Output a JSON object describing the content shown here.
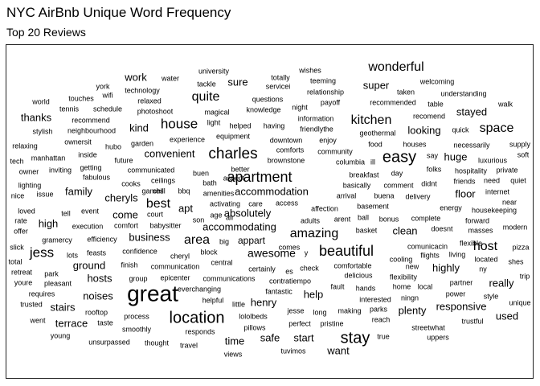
{
  "title": "NYC AirBnb Unique Word Frequency",
  "subtitle": "Top 20 Reviews",
  "chart_data": {
    "type": "wordcloud",
    "words": [
      {
        "text": "great",
        "size": 28
      },
      {
        "text": "easy",
        "size": 20
      },
      {
        "text": "location",
        "size": 20
      },
      {
        "text": "stay",
        "size": 20
      },
      {
        "text": "charles",
        "size": 19
      },
      {
        "text": "apartment",
        "size": 18
      },
      {
        "text": "beautiful",
        "size": 18
      },
      {
        "text": "wonderful",
        "size": 16
      },
      {
        "text": "house",
        "size": 17
      },
      {
        "text": "jess",
        "size": 17
      },
      {
        "text": "kitchen",
        "size": 16
      },
      {
        "text": "space",
        "size": 16
      },
      {
        "text": "host",
        "size": 16
      },
      {
        "text": "amazing",
        "size": 16
      },
      {
        "text": "area",
        "size": 16
      },
      {
        "text": "best",
        "size": 16
      },
      {
        "text": "quite",
        "size": 16
      },
      {
        "text": "awesome",
        "size": 14
      },
      {
        "text": "absolutely",
        "size": 13
      },
      {
        "text": "accommodation",
        "size": 13
      },
      {
        "text": "accommodating",
        "size": 13
      },
      {
        "text": "convenient",
        "size": 13
      },
      {
        "text": "cheryls",
        "size": 13
      },
      {
        "text": "family",
        "size": 13
      },
      {
        "text": "apt",
        "size": 13
      },
      {
        "text": "come",
        "size": 13
      },
      {
        "text": "business",
        "size": 13
      },
      {
        "text": "clean",
        "size": 13
      },
      {
        "text": "floor",
        "size": 13
      },
      {
        "text": "huge",
        "size": 13
      },
      {
        "text": "stayed",
        "size": 13
      },
      {
        "text": "looking",
        "size": 13
      },
      {
        "text": "super",
        "size": 13
      },
      {
        "text": "thanks",
        "size": 13
      },
      {
        "text": "work",
        "size": 13
      },
      {
        "text": "sure",
        "size": 13
      },
      {
        "text": "kind",
        "size": 13
      },
      {
        "text": "high",
        "size": 13
      },
      {
        "text": "ground",
        "size": 13
      },
      {
        "text": "hosts",
        "size": 13
      },
      {
        "text": "noises",
        "size": 13
      },
      {
        "text": "stairs",
        "size": 13
      },
      {
        "text": "terrace",
        "size": 13
      },
      {
        "text": "henry",
        "size": 13
      },
      {
        "text": "safe",
        "size": 13
      },
      {
        "text": "time",
        "size": 13
      },
      {
        "text": "start",
        "size": 13
      },
      {
        "text": "want",
        "size": 13
      },
      {
        "text": "help",
        "size": 13
      },
      {
        "text": "plenty",
        "size": 13
      },
      {
        "text": "responsive",
        "size": 13
      },
      {
        "text": "used",
        "size": 13
      },
      {
        "text": "really",
        "size": 13
      },
      {
        "text": "highly",
        "size": 13
      },
      {
        "text": "appart",
        "size": 12
      },
      {
        "text": "water",
        "size": 9
      },
      {
        "text": "university",
        "size": 9
      },
      {
        "text": "tackle",
        "size": 9
      },
      {
        "text": "totally",
        "size": 9
      },
      {
        "text": "servicei",
        "size": 9
      },
      {
        "text": "wishes",
        "size": 9
      },
      {
        "text": "teeming",
        "size": 9
      },
      {
        "text": "relationship",
        "size": 9
      },
      {
        "text": "welcoming",
        "size": 9
      },
      {
        "text": "taken",
        "size": 9
      },
      {
        "text": "understanding",
        "size": 9
      },
      {
        "text": "york",
        "size": 9
      },
      {
        "text": "technology",
        "size": 9
      },
      {
        "text": "questions",
        "size": 9
      },
      {
        "text": "payoff",
        "size": 9
      },
      {
        "text": "recommended",
        "size": 9
      },
      {
        "text": "table",
        "size": 9
      },
      {
        "text": "walk",
        "size": 9
      },
      {
        "text": "world",
        "size": 9
      },
      {
        "text": "touches",
        "size": 9
      },
      {
        "text": "wifi",
        "size": 9
      },
      {
        "text": "relaxed",
        "size": 9
      },
      {
        "text": "tennis",
        "size": 9
      },
      {
        "text": "schedule",
        "size": 9
      },
      {
        "text": "photoshoot",
        "size": 9
      },
      {
        "text": "magical",
        "size": 9
      },
      {
        "text": "knowledge",
        "size": 9
      },
      {
        "text": "night",
        "size": 9
      },
      {
        "text": "information",
        "size": 9
      },
      {
        "text": "recomend",
        "size": 9
      },
      {
        "text": "recommend",
        "size": 9
      },
      {
        "text": "light",
        "size": 9
      },
      {
        "text": "helped",
        "size": 9
      },
      {
        "text": "having",
        "size": 9
      },
      {
        "text": "friendlythe",
        "size": 9
      },
      {
        "text": "geothermal",
        "size": 9
      },
      {
        "text": "quick",
        "size": 9
      },
      {
        "text": "stylish",
        "size": 9
      },
      {
        "text": "neighbourhood",
        "size": 9
      },
      {
        "text": "equipment",
        "size": 9
      },
      {
        "text": "downtown",
        "size": 9
      },
      {
        "text": "enjoy",
        "size": 9
      },
      {
        "text": "food",
        "size": 9
      },
      {
        "text": "houses",
        "size": 9
      },
      {
        "text": "necessarily",
        "size": 9
      },
      {
        "text": "supply",
        "size": 9
      },
      {
        "text": "relaxing",
        "size": 9
      },
      {
        "text": "ownersit",
        "size": 9
      },
      {
        "text": "hubo",
        "size": 9
      },
      {
        "text": "garden",
        "size": 9
      },
      {
        "text": "experience",
        "size": 9
      },
      {
        "text": "comforts",
        "size": 9
      },
      {
        "text": "community",
        "size": 9
      },
      {
        "text": "say",
        "size": 9
      },
      {
        "text": "soft",
        "size": 9
      },
      {
        "text": "tech",
        "size": 9
      },
      {
        "text": "manhattan",
        "size": 9
      },
      {
        "text": "inside",
        "size": 9
      },
      {
        "text": "future",
        "size": 9
      },
      {
        "text": "brownstone",
        "size": 9
      },
      {
        "text": "columbia",
        "size": 9
      },
      {
        "text": "ill",
        "size": 9
      },
      {
        "text": "luxurious",
        "size": 9
      },
      {
        "text": "owner",
        "size": 9
      },
      {
        "text": "inviting",
        "size": 9
      },
      {
        "text": "getting",
        "size": 9
      },
      {
        "text": "communicated",
        "size": 9
      },
      {
        "text": "better",
        "size": 9
      },
      {
        "text": "folks",
        "size": 9
      },
      {
        "text": "hospitality",
        "size": 9
      },
      {
        "text": "private",
        "size": 9
      },
      {
        "text": "fabulous",
        "size": 9
      },
      {
        "text": "buen",
        "size": 9
      },
      {
        "text": "aspect",
        "size": 9
      },
      {
        "text": "breakfast",
        "size": 9
      },
      {
        "text": "day",
        "size": 9
      },
      {
        "text": "lighting",
        "size": 9
      },
      {
        "text": "cooks",
        "size": 9
      },
      {
        "text": "ceilings",
        "size": 9
      },
      {
        "text": "bath",
        "size": 9
      },
      {
        "text": "basically",
        "size": 9
      },
      {
        "text": "comment",
        "size": 9
      },
      {
        "text": "didnt",
        "size": 9
      },
      {
        "text": "friends",
        "size": 9
      },
      {
        "text": "need",
        "size": 9
      },
      {
        "text": "quiet",
        "size": 9
      },
      {
        "text": "nice",
        "size": 9
      },
      {
        "text": "issue",
        "size": 9
      },
      {
        "text": "games",
        "size": 9
      },
      {
        "text": "chill",
        "size": 9
      },
      {
        "text": "bbq",
        "size": 9
      },
      {
        "text": "amenities",
        "size": 9
      },
      {
        "text": "arrival",
        "size": 9
      },
      {
        "text": "buena",
        "size": 9
      },
      {
        "text": "delivery",
        "size": 9
      },
      {
        "text": "internet",
        "size": 9
      },
      {
        "text": "near",
        "size": 9
      },
      {
        "text": "activating",
        "size": 9
      },
      {
        "text": "care",
        "size": 9
      },
      {
        "text": "access",
        "size": 9
      },
      {
        "text": "basement",
        "size": 9
      },
      {
        "text": "loved",
        "size": 9
      },
      {
        "text": "tell",
        "size": 9
      },
      {
        "text": "event",
        "size": 9
      },
      {
        "text": "court",
        "size": 9
      },
      {
        "text": "age",
        "size": 9
      },
      {
        "text": "air",
        "size": 9
      },
      {
        "text": "affection",
        "size": 9
      },
      {
        "text": "ball",
        "size": 9
      },
      {
        "text": "energy",
        "size": 9
      },
      {
        "text": "housekeeping",
        "size": 9
      },
      {
        "text": "rate",
        "size": 9
      },
      {
        "text": "execution",
        "size": 9
      },
      {
        "text": "comfort",
        "size": 9
      },
      {
        "text": "babysitter",
        "size": 9
      },
      {
        "text": "son",
        "size": 9
      },
      {
        "text": "adults",
        "size": 9
      },
      {
        "text": "arent",
        "size": 9
      },
      {
        "text": "bonus",
        "size": 9
      },
      {
        "text": "complete",
        "size": 9
      },
      {
        "text": "forward",
        "size": 9
      },
      {
        "text": "offer",
        "size": 9
      },
      {
        "text": "basket",
        "size": 9
      },
      {
        "text": "doesnt",
        "size": 9
      },
      {
        "text": "masses",
        "size": 9
      },
      {
        "text": "modern",
        "size": 9
      },
      {
        "text": "gramercy",
        "size": 9
      },
      {
        "text": "efficiency",
        "size": 9
      },
      {
        "text": "big",
        "size": 9
      },
      {
        "text": "slick",
        "size": 9
      },
      {
        "text": "feasts",
        "size": 9
      },
      {
        "text": "confidence",
        "size": 9
      },
      {
        "text": "block",
        "size": 9
      },
      {
        "text": "comes",
        "size": 9
      },
      {
        "text": "comunicacin",
        "size": 9
      },
      {
        "text": "flexible",
        "size": 9
      },
      {
        "text": "pizza",
        "size": 9
      },
      {
        "text": "lots",
        "size": 9
      },
      {
        "text": "cheryl",
        "size": 9
      },
      {
        "text": "central",
        "size": 9
      },
      {
        "text": "y",
        "size": 9
      },
      {
        "text": "cooling",
        "size": 9
      },
      {
        "text": "flights",
        "size": 9
      },
      {
        "text": "living",
        "size": 9
      },
      {
        "text": "located",
        "size": 9
      },
      {
        "text": "shes",
        "size": 9
      },
      {
        "text": "total",
        "size": 9
      },
      {
        "text": "finish",
        "size": 9
      },
      {
        "text": "communication",
        "size": 9
      },
      {
        "text": "certainly",
        "size": 9
      },
      {
        "text": "es",
        "size": 9
      },
      {
        "text": "check",
        "size": 9
      },
      {
        "text": "comfortable",
        "size": 9
      },
      {
        "text": "new",
        "size": 9
      },
      {
        "text": "ny",
        "size": 9
      },
      {
        "text": "retreat",
        "size": 9
      },
      {
        "text": "park",
        "size": 9
      },
      {
        "text": "group",
        "size": 9
      },
      {
        "text": "epicenter",
        "size": 9
      },
      {
        "text": "communications",
        "size": 9
      },
      {
        "text": "contratiempo",
        "size": 9
      },
      {
        "text": "delicious",
        "size": 9
      },
      {
        "text": "flexibility",
        "size": 9
      },
      {
        "text": "trip",
        "size": 9
      },
      {
        "text": "youre",
        "size": 9
      },
      {
        "text": "pleasant",
        "size": 9
      },
      {
        "text": "everchanging",
        "size": 9
      },
      {
        "text": "fantastic",
        "size": 9
      },
      {
        "text": "fault",
        "size": 9
      },
      {
        "text": "hands",
        "size": 9
      },
      {
        "text": "home",
        "size": 9
      },
      {
        "text": "local",
        "size": 9
      },
      {
        "text": "partner",
        "size": 9
      },
      {
        "text": "requires",
        "size": 9
      },
      {
        "text": "helpful",
        "size": 9
      },
      {
        "text": "interested",
        "size": 9
      },
      {
        "text": "ningn",
        "size": 9
      },
      {
        "text": "power",
        "size": 9
      },
      {
        "text": "style",
        "size": 9
      },
      {
        "text": "trusted",
        "size": 9
      },
      {
        "text": "little",
        "size": 9
      },
      {
        "text": "parks",
        "size": 9
      },
      {
        "text": "unique",
        "size": 9
      },
      {
        "text": "rooftop",
        "size": 9
      },
      {
        "text": "lololbeds",
        "size": 9
      },
      {
        "text": "jesse",
        "size": 9
      },
      {
        "text": "long",
        "size": 9
      },
      {
        "text": "making",
        "size": 9
      },
      {
        "text": "reach",
        "size": 9
      },
      {
        "text": "went",
        "size": 9
      },
      {
        "text": "taste",
        "size": 9
      },
      {
        "text": "process",
        "size": 9
      },
      {
        "text": "pillows",
        "size": 9
      },
      {
        "text": "perfect",
        "size": 9
      },
      {
        "text": "pristine",
        "size": 9
      },
      {
        "text": "trustful",
        "size": 9
      },
      {
        "text": "young",
        "size": 9
      },
      {
        "text": "smoothly",
        "size": 9
      },
      {
        "text": "responds",
        "size": 9
      },
      {
        "text": "streetwhat",
        "size": 9
      },
      {
        "text": "unsurpassed",
        "size": 9
      },
      {
        "text": "thought",
        "size": 9
      },
      {
        "text": "travel",
        "size": 9
      },
      {
        "text": "views",
        "size": 9
      },
      {
        "text": "true",
        "size": 9
      },
      {
        "text": "uppers",
        "size": 9
      },
      {
        "text": "tuvimos",
        "size": 9
      }
    ]
  }
}
